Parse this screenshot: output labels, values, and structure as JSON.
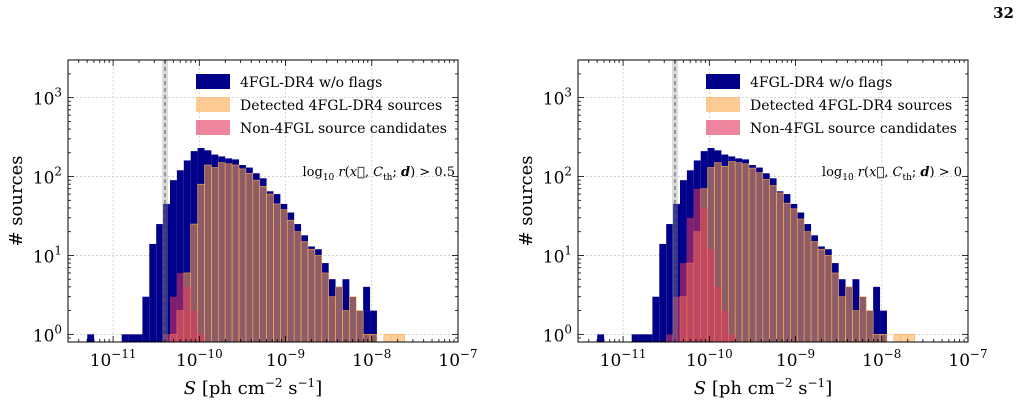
{
  "page": {
    "number": "32"
  },
  "colors": {
    "all": "#00008b",
    "detected": "#ffa94d",
    "candidates": "#e3375d",
    "vline": "#555555"
  },
  "chart_data": [
    {
      "type": "bar",
      "xscale": "log",
      "yscale": "log",
      "xlim": [
        3e-12,
        1e-07
      ],
      "ylim": [
        0.8,
        3000
      ],
      "xlabel": "S [ph cm^-2 s^-1]",
      "ylabel": "# sources",
      "xtick_labels": [
        "10^-11",
        "10^-10",
        "10^-9",
        "10^-8",
        "10^-7"
      ],
      "ytick_labels": [
        "10^0",
        "10^1",
        "10^2",
        "10^3"
      ],
      "annotation": "log10 r(x, C_th; d) > 0.5",
      "vline_x": 4e-11,
      "bin_edges_log10": [
        -11.3,
        -11.22,
        -11.14,
        -11.06,
        -10.98,
        -10.9,
        -10.82,
        -10.74,
        -10.66,
        -10.58,
        -10.5,
        -10.42,
        -10.34,
        -10.26,
        -10.18,
        -10.1,
        -10.02,
        -9.94,
        -9.86,
        -9.78,
        -9.7,
        -9.62,
        -9.54,
        -9.46,
        -9.38,
        -9.3,
        -9.22,
        -9.14,
        -9.06,
        -8.98,
        -8.9,
        -8.82,
        -8.74,
        -8.66,
        -8.58,
        -8.5,
        -8.42,
        -8.34,
        -8.26,
        -8.18,
        -8.1,
        -8.02,
        -7.94,
        -7.86,
        -7.78,
        -7.7,
        -7.62
      ],
      "legend_position": "top-right",
      "series": [
        {
          "name": "4FGL-DR4 w/o flags",
          "values": [
            1,
            0,
            0,
            0,
            0,
            1,
            1,
            1,
            3,
            14,
            25,
            45,
            90,
            120,
            160,
            210,
            230,
            215,
            190,
            180,
            170,
            165,
            140,
            130,
            110,
            95,
            65,
            60,
            45,
            35,
            25,
            18,
            13,
            12,
            8,
            5,
            4,
            5,
            3,
            2,
            4,
            2,
            0,
            0,
            0,
            0
          ]
        },
        {
          "name": "Detected 4FGL-DR4 sources",
          "values": [
            0,
            0,
            0,
            0,
            0,
            0,
            0,
            0,
            0,
            0,
            0,
            0,
            1,
            2,
            6,
            25,
            80,
            140,
            130,
            150,
            145,
            140,
            125,
            110,
            90,
            75,
            60,
            45,
            38,
            28,
            20,
            15,
            12,
            10,
            6,
            3,
            4,
            2,
            3,
            2,
            1,
            1,
            0,
            1,
            1,
            1
          ]
        },
        {
          "name": "Non-4FGL source candidates",
          "values": [
            0,
            0,
            0,
            0,
            0,
            0,
            0,
            0,
            0,
            0,
            0,
            1,
            3,
            6,
            4,
            2,
            1,
            0,
            0,
            0,
            0,
            0,
            0,
            0,
            0,
            0,
            0,
            0,
            0,
            0,
            0,
            0,
            0,
            0,
            0,
            0,
            0,
            0,
            0,
            0,
            0,
            0,
            0,
            0,
            0,
            0
          ]
        }
      ]
    },
    {
      "type": "bar",
      "xscale": "log",
      "yscale": "log",
      "xlim": [
        3e-12,
        1e-07
      ],
      "ylim": [
        0.8,
        3000
      ],
      "xlabel": "S [ph cm^-2 s^-1]",
      "ylabel": "# sources",
      "xtick_labels": [
        "10^-11",
        "10^-10",
        "10^-9",
        "10^-8",
        "10^-7"
      ],
      "ytick_labels": [
        "10^0",
        "10^1",
        "10^2",
        "10^3"
      ],
      "annotation": "log10 r(x, C_th; d) > 0",
      "vline_x": 4e-11,
      "bin_edges_log10": [
        -11.3,
        -11.22,
        -11.14,
        -11.06,
        -10.98,
        -10.9,
        -10.82,
        -10.74,
        -10.66,
        -10.58,
        -10.5,
        -10.42,
        -10.34,
        -10.26,
        -10.18,
        -10.1,
        -10.02,
        -9.94,
        -9.86,
        -9.78,
        -9.7,
        -9.62,
        -9.54,
        -9.46,
        -9.38,
        -9.3,
        -9.22,
        -9.14,
        -9.06,
        -8.98,
        -8.9,
        -8.82,
        -8.74,
        -8.66,
        -8.58,
        -8.5,
        -8.42,
        -8.34,
        -8.26,
        -8.18,
        -8.1,
        -8.02,
        -7.94,
        -7.86,
        -7.78,
        -7.7,
        -7.62
      ],
      "legend_position": "top-right",
      "series": [
        {
          "name": "4FGL-DR4 w/o flags",
          "values": [
            1,
            0,
            0,
            0,
            0,
            1,
            1,
            1,
            3,
            14,
            25,
            45,
            90,
            120,
            160,
            210,
            230,
            215,
            190,
            180,
            170,
            165,
            140,
            130,
            110,
            95,
            65,
            60,
            45,
            35,
            25,
            18,
            13,
            12,
            8,
            5,
            4,
            5,
            3,
            2,
            4,
            2,
            0,
            0,
            0,
            0
          ]
        },
        {
          "name": "Detected 4FGL-DR4 sources",
          "values": [
            0,
            0,
            0,
            0,
            0,
            0,
            0,
            0,
            0,
            0,
            0,
            0,
            3,
            8,
            20,
            70,
            130,
            150,
            135,
            155,
            150,
            145,
            128,
            112,
            92,
            77,
            62,
            46,
            39,
            29,
            20,
            15,
            12,
            10,
            6,
            3,
            4,
            2,
            3,
            2,
            1,
            1,
            0,
            1,
            1,
            1
          ]
        },
        {
          "name": "Non-4FGL source candidates",
          "values": [
            0,
            0,
            0,
            0,
            0,
            0,
            0,
            0,
            0,
            0,
            1,
            3,
            8,
            30,
            70,
            40,
            12,
            4,
            2,
            1,
            0,
            0,
            0,
            0,
            0,
            0,
            0,
            0,
            0,
            0,
            0,
            0,
            0,
            0,
            0,
            0,
            0,
            0,
            0,
            0,
            0,
            0,
            0,
            0,
            0,
            0
          ]
        }
      ]
    }
  ]
}
